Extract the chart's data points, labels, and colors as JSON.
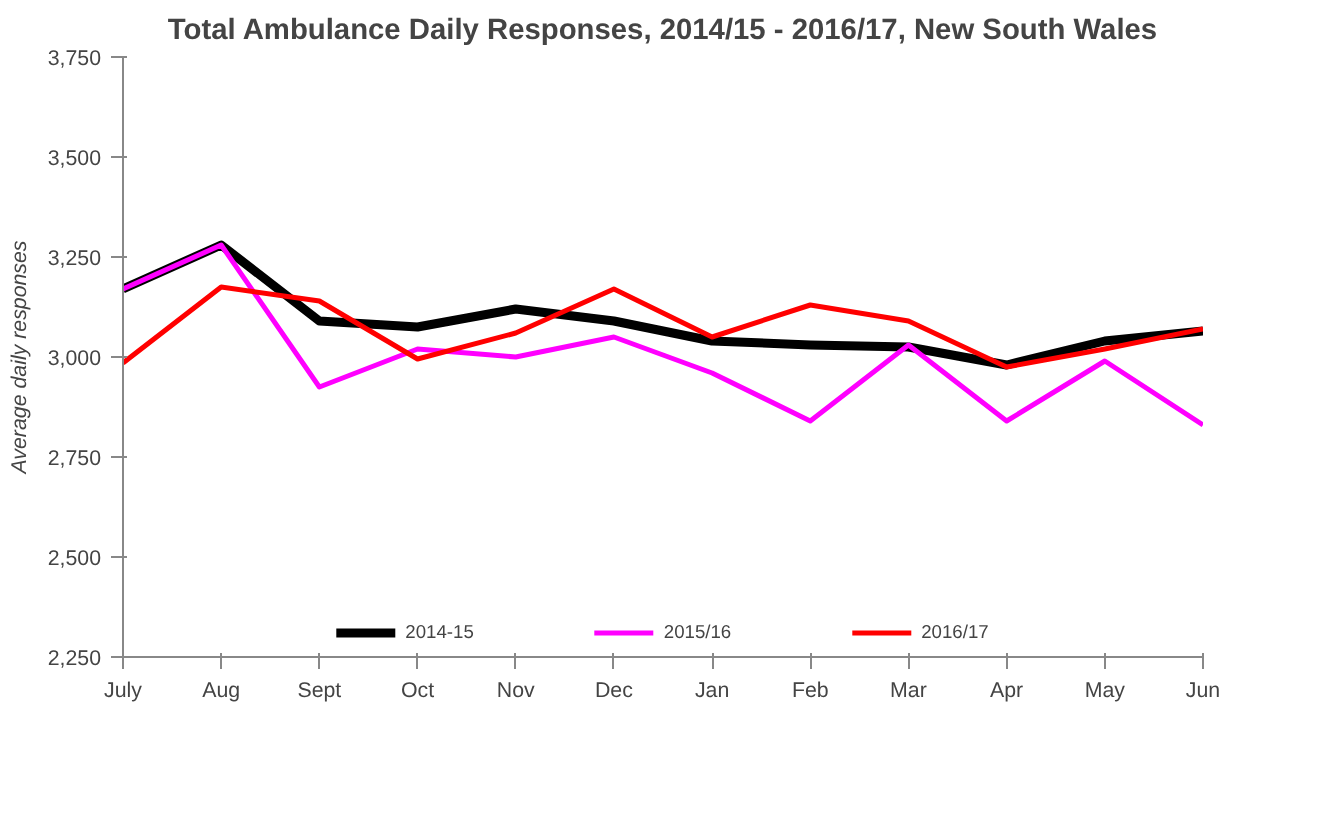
{
  "chart_data": {
    "type": "line",
    "title": "Total Ambulance Daily Responses, 2014/15 - 2016/17, New South Wales",
    "ylabel": "Average daily responses",
    "categories": [
      "July",
      "Aug",
      "Sept",
      "Oct",
      "Nov",
      "Dec",
      "Jan",
      "Feb",
      "Mar",
      "Apr",
      "May",
      "Jun"
    ],
    "series": [
      {
        "name": "2014-15",
        "color": "#000000",
        "values": [
          3170,
          3280,
          3090,
          3075,
          3120,
          3090,
          3040,
          3030,
          3025,
          2980,
          3040,
          3065
        ]
      },
      {
        "name": "2015/16",
        "color": "#ff00ff",
        "values": [
          3170,
          3280,
          2925,
          3020,
          3000,
          3050,
          2960,
          2840,
          3030,
          2840,
          2990,
          2830
        ]
      },
      {
        "name": "2016/17",
        "color": "#ff0000",
        "values": [
          2985,
          3175,
          3140,
          2995,
          3060,
          3170,
          3050,
          3130,
          3090,
          2975,
          3020,
          3070
        ]
      }
    ],
    "ylim": [
      2250,
      3750
    ],
    "yticks": [
      {
        "value": 2250,
        "label": "2,250"
      },
      {
        "value": 2500,
        "label": "2,500"
      },
      {
        "value": 2750,
        "label": "2,750"
      },
      {
        "value": 3000,
        "label": "3,000"
      },
      {
        "value": 3250,
        "label": "3,250"
      },
      {
        "value": 3500,
        "label": "3,500"
      },
      {
        "value": 3750,
        "label": "3,750"
      }
    ],
    "grid": false,
    "legend": "bottom",
    "marker": "none",
    "line_style": "solid"
  }
}
